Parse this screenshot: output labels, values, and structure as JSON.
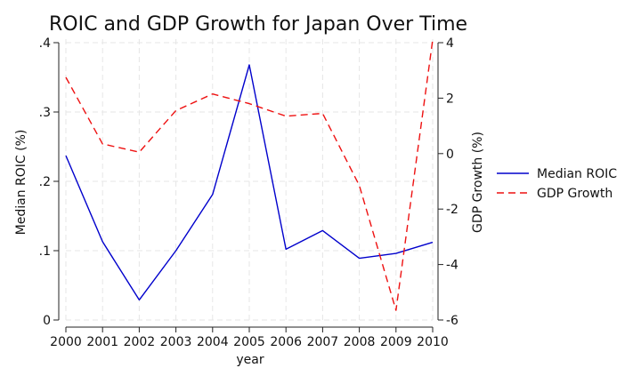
{
  "chart_data": {
    "type": "line",
    "title": "ROIC and GDP Growth for Japan Over Time",
    "xlabel": "year",
    "ylabel_left": "Median ROIC (%)",
    "ylabel_right": "GDP Growth (%)",
    "x": [
      2000,
      2001,
      2002,
      2003,
      2004,
      2005,
      2006,
      2007,
      2008,
      2009,
      2010
    ],
    "xlim": [
      2000,
      2010
    ],
    "ylim_left": [
      0,
      0.4
    ],
    "ylim_right": [
      -6,
      4
    ],
    "yticks_left": [
      0,
      0.1,
      0.2,
      0.3,
      0.4
    ],
    "yticks_left_labels": [
      "0",
      ".1",
      ".2",
      ".3",
      ".4"
    ],
    "yticks_right": [
      -6,
      -4,
      -2,
      0,
      2,
      4
    ],
    "yticks_right_labels": [
      "-6",
      "-4",
      "-2",
      "0",
      "2",
      "4"
    ],
    "grid": true,
    "legend_position": "right",
    "series": [
      {
        "name": "Median ROIC",
        "axis": "left",
        "color": "#0000cc",
        "dash": "solid",
        "values": [
          0.237,
          0.113,
          0.029,
          0.1,
          0.181,
          0.368,
          0.102,
          0.129,
          0.089,
          0.096,
          0.112
        ]
      },
      {
        "name": "GDP Growth",
        "axis": "right",
        "color": "#ee1111",
        "dash": "dashed",
        "values": [
          2.75,
          0.35,
          0.05,
          1.55,
          2.15,
          1.8,
          1.35,
          1.45,
          -1.15,
          -5.65,
          4.1
        ]
      }
    ]
  }
}
